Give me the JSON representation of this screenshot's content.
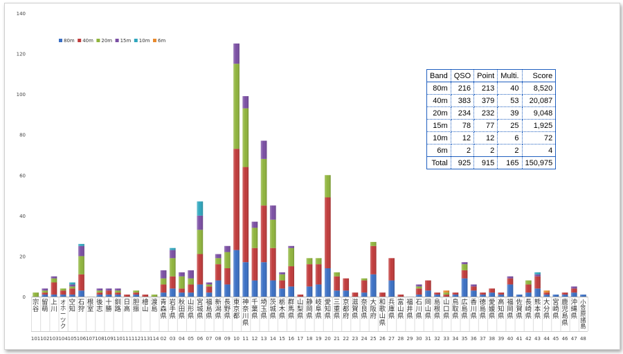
{
  "chart_data": {
    "type": "bar",
    "stacked": true,
    "ylim": [
      0,
      140
    ],
    "yticks": [
      0,
      20,
      40,
      60,
      80,
      100,
      120,
      140
    ],
    "grid": false,
    "legend_position": "top-left",
    "colors": {
      "80m": "#3a6fc4",
      "40m": "#c03a3a",
      "20m": "#8fb43c",
      "15m": "#7a4ea3",
      "10m": "#2ea6bd",
      "6m": "#e88a2e"
    },
    "categories": [
      {
        "name": "宗谷",
        "code": "101"
      },
      {
        "name": "留萌",
        "code": "102"
      },
      {
        "name": "上川",
        "code": "103"
      },
      {
        "name": "オホーツク",
        "code": "104"
      },
      {
        "name": "空知",
        "code": "105"
      },
      {
        "name": "石狩",
        "code": "106"
      },
      {
        "name": "根室",
        "code": "107"
      },
      {
        "name": "後志",
        "code": "108"
      },
      {
        "name": "十勝",
        "code": "109"
      },
      {
        "name": "釧路",
        "code": "110"
      },
      {
        "name": "日高",
        "code": "111"
      },
      {
        "name": "胆振",
        "code": "112"
      },
      {
        "name": "檜山",
        "code": "113"
      },
      {
        "name": "渡島",
        "code": "114"
      },
      {
        "name": "青森県",
        "code": "02"
      },
      {
        "name": "岩手県",
        "code": "03"
      },
      {
        "name": "秋田県",
        "code": "04"
      },
      {
        "name": "山形県",
        "code": "05"
      },
      {
        "name": "宮城県",
        "code": "06"
      },
      {
        "name": "福島県",
        "code": "07"
      },
      {
        "name": "新潟県",
        "code": "08"
      },
      {
        "name": "長野県",
        "code": "09"
      },
      {
        "name": "東京都",
        "code": "10"
      },
      {
        "name": "神奈川県",
        "code": "11"
      },
      {
        "name": "千葉県",
        "code": "12"
      },
      {
        "name": "埼玉県",
        "code": "13"
      },
      {
        "name": "茨城県",
        "code": "14"
      },
      {
        "name": "栃木県",
        "code": "15"
      },
      {
        "name": "群馬県",
        "code": "16"
      },
      {
        "name": "山梨県",
        "code": "17"
      },
      {
        "name": "静岡県",
        "code": "18"
      },
      {
        "name": "岐阜県",
        "code": "19"
      },
      {
        "name": "愛知県",
        "code": "20"
      },
      {
        "name": "三重県",
        "code": "21"
      },
      {
        "name": "京都府",
        "code": "22"
      },
      {
        "name": "滋賀県",
        "code": "23"
      },
      {
        "name": "奈良県",
        "code": "24"
      },
      {
        "name": "大阪府",
        "code": "25"
      },
      {
        "name": "和歌山県",
        "code": "26"
      },
      {
        "name": "兵庫県",
        "code": "27"
      },
      {
        "name": "富山県",
        "code": "28"
      },
      {
        "name": "福井県",
        "code": "29"
      },
      {
        "name": "石川県",
        "code": "30"
      },
      {
        "name": "岡山県",
        "code": "31"
      },
      {
        "name": "島根県",
        "code": "32"
      },
      {
        "name": "山口県",
        "code": "33"
      },
      {
        "name": "鳥取県",
        "code": "34"
      },
      {
        "name": "広島県",
        "code": "35"
      },
      {
        "name": "香川県",
        "code": "36"
      },
      {
        "name": "徳島県",
        "code": "37"
      },
      {
        "name": "愛媛県",
        "code": "38"
      },
      {
        "name": "高知県",
        "code": "39"
      },
      {
        "name": "福岡県",
        "code": "40"
      },
      {
        "name": "佐賀県",
        "code": "41"
      },
      {
        "name": "長崎県",
        "code": "42"
      },
      {
        "name": "熊本県",
        "code": "43"
      },
      {
        "name": "大分県",
        "code": "44"
      },
      {
        "name": "宮崎県",
        "code": "45"
      },
      {
        "name": "鹿児島県",
        "code": "46"
      },
      {
        "name": "沖縄県",
        "code": "47"
      },
      {
        "name": "小笠原諸島",
        "code": "48"
      }
    ],
    "series": [
      {
        "name": "80m",
        "values": [
          0,
          1,
          1,
          1,
          1,
          3,
          0,
          1,
          1,
          1,
          0,
          1,
          0,
          0,
          2,
          4,
          2,
          2,
          6,
          2,
          8,
          6,
          23,
          17,
          8,
          17,
          8,
          4,
          5,
          0,
          5,
          6,
          14,
          3,
          3,
          0,
          2,
          11,
          0,
          8,
          0,
          0,
          1,
          3,
          1,
          0,
          1,
          9,
          3,
          1,
          2,
          1,
          6,
          1,
          2,
          4,
          1,
          1,
          1,
          2,
          1
        ]
      },
      {
        "name": "40m",
        "values": [
          0,
          1,
          6,
          2,
          3,
          8,
          0,
          1,
          2,
          1,
          1,
          1,
          1,
          0,
          4,
          6,
          2,
          4,
          15,
          3,
          8,
          8,
          50,
          47,
          16,
          28,
          16,
          4,
          10,
          1,
          11,
          10,
          35,
          7,
          6,
          2,
          6,
          14,
          2,
          11,
          1,
          0,
          3,
          5,
          1,
          1,
          1,
          4,
          2,
          1,
          2,
          1,
          3,
          0,
          4,
          6,
          1,
          0,
          1,
          2,
          0
        ]
      },
      {
        "name": "20m",
        "values": [
          2,
          1,
          2,
          1,
          1,
          9,
          0,
          1,
          0,
          1,
          0,
          1,
          0,
          1,
          3,
          9,
          6,
          3,
          12,
          1,
          3,
          8,
          42,
          29,
          10,
          23,
          14,
          3,
          9,
          0,
          3,
          3,
          11,
          2,
          0,
          0,
          1,
          2,
          0,
          0,
          0,
          0,
          1,
          0,
          0,
          1,
          0,
          3,
          0,
          0,
          0,
          0,
          0,
          0,
          2,
          0,
          0,
          0,
          0,
          0,
          0
        ]
      },
      {
        "name": "15m",
        "values": [
          0,
          1,
          1,
          0,
          1,
          5,
          0,
          1,
          1,
          1,
          0,
          0,
          0,
          0,
          4,
          4,
          2,
          4,
          7,
          1,
          2,
          3,
          10,
          6,
          3,
          9,
          7,
          1,
          1,
          0,
          0,
          0,
          0,
          0,
          0,
          0,
          0,
          0,
          0,
          0,
          0,
          0,
          1,
          0,
          0,
          0,
          0,
          1,
          1,
          0,
          0,
          0,
          1,
          0,
          0,
          1,
          0,
          0,
          0,
          1,
          0
        ]
      },
      {
        "name": "10m",
        "values": [
          0,
          0,
          0,
          0,
          1,
          1,
          0,
          0,
          0,
          0,
          0,
          0,
          0,
          0,
          0,
          1,
          0,
          0,
          7,
          0,
          0,
          0,
          0,
          0,
          0,
          0,
          0,
          0,
          0,
          0,
          0,
          0,
          0,
          0,
          0,
          0,
          0,
          0,
          0,
          0,
          0,
          0,
          0,
          0,
          0,
          0,
          0,
          0,
          0,
          0,
          0,
          0,
          0,
          0,
          0,
          1,
          0,
          0,
          0,
          0,
          0
        ]
      },
      {
        "name": "6m",
        "values": [
          0,
          0,
          0,
          0,
          0,
          0,
          0,
          0,
          0,
          0,
          0,
          0,
          0,
          0,
          0,
          0,
          0,
          0,
          0,
          0,
          0,
          0,
          0,
          0,
          0,
          0,
          0,
          0,
          0,
          0,
          0,
          0,
          0,
          0,
          0,
          0,
          0,
          0,
          0,
          0,
          0,
          0,
          0,
          0,
          0,
          1,
          0,
          0,
          0,
          0,
          0,
          0,
          0,
          0,
          0,
          0,
          1,
          0,
          0,
          0,
          0
        ]
      }
    ]
  },
  "score_table": {
    "headers": [
      "Band",
      "QSO",
      "Point",
      "Multi.",
      "Score"
    ],
    "rows": [
      [
        "80m",
        "216",
        "213",
        "40",
        "8,520"
      ],
      [
        "40m",
        "383",
        "379",
        "53",
        "20,087"
      ],
      [
        "20m",
        "234",
        "232",
        "39",
        "9,048"
      ],
      [
        "15m",
        "78",
        "77",
        "25",
        "1,925"
      ],
      [
        "10m",
        "12",
        "12",
        "6",
        "72"
      ],
      [
        "6m",
        "2",
        "2",
        "2",
        "4"
      ],
      [
        "Total",
        "925",
        "915",
        "165",
        "150,975"
      ]
    ]
  }
}
